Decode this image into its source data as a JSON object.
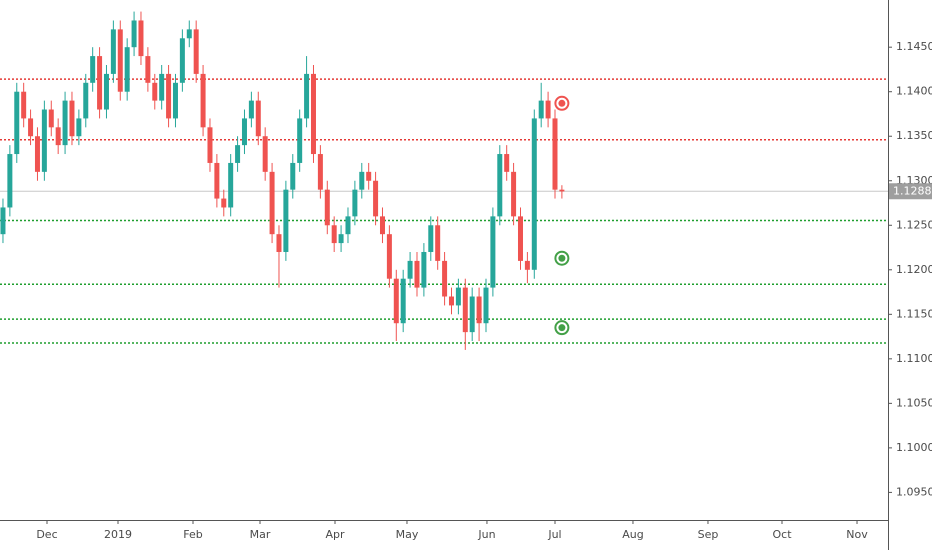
{
  "chart_data": {
    "type": "candlestick",
    "up_color": "#26a69a",
    "down_color": "#ef5350",
    "xlim": [
      -0.43,
      128.26
    ],
    "xticks": [
      {
        "value": 6.38,
        "label": "Dec"
      },
      {
        "value": 16.67,
        "label": "2019"
      },
      {
        "value": 27.54,
        "label": "Feb"
      },
      {
        "value": 37.25,
        "label": "Mar"
      },
      {
        "value": 48.12,
        "label": "Apr"
      },
      {
        "value": 58.55,
        "label": "May"
      },
      {
        "value": 70.14,
        "label": "Jun"
      },
      {
        "value": 80.0,
        "label": "Jul"
      },
      {
        "value": 91.3,
        "label": "Aug"
      },
      {
        "value": 102.17,
        "label": "Sep"
      },
      {
        "value": 112.9,
        "label": "Oct"
      },
      {
        "value": 123.77,
        "label": "Nov"
      }
    ],
    "ylim": [
      1.0919,
      1.1503
    ],
    "yticks": [
      {
        "value": 1.095,
        "label": "1.09500"
      },
      {
        "value": 1.1,
        "label": "1.10000"
      },
      {
        "value": 1.105,
        "label": "1.10500"
      },
      {
        "value": 1.11,
        "label": "1.11000"
      },
      {
        "value": 1.115,
        "label": "1.11500"
      },
      {
        "value": 1.12,
        "label": "1.12000"
      },
      {
        "value": 1.125,
        "label": "1.12500"
      },
      {
        "value": 1.13,
        "label": "1.13000"
      },
      {
        "value": 1.135,
        "label": "1.13500"
      },
      {
        "value": 1.14,
        "label": "1.14000"
      },
      {
        "value": 1.145,
        "label": "1.14500"
      }
    ],
    "open": [
      1.124,
      1.127,
      1.133,
      1.14,
      1.137,
      1.135,
      1.131,
      1.138,
      1.136,
      1.134,
      1.139,
      1.135,
      1.137,
      1.141,
      1.144,
      1.138,
      1.142,
      1.147,
      1.14,
      1.145,
      1.148,
      1.144,
      1.141,
      1.139,
      1.142,
      1.137,
      1.141,
      1.146,
      1.147,
      1.142,
      1.136,
      1.132,
      1.128,
      1.127,
      1.132,
      1.134,
      1.137,
      1.139,
      1.135,
      1.131,
      1.124,
      1.122,
      1.129,
      1.132,
      1.137,
      1.142,
      1.133,
      1.129,
      1.125,
      1.123,
      1.124,
      1.126,
      1.129,
      1.131,
      1.13,
      1.126,
      1.124,
      1.119,
      1.114,
      1.119,
      1.121,
      1.118,
      1.122,
      1.125,
      1.121,
      1.117,
      1.116,
      1.118,
      1.113,
      1.117,
      1.114,
      1.118,
      1.126,
      1.133,
      1.131,
      1.126,
      1.121,
      1.12,
      1.137,
      1.139,
      1.137,
      1.129
    ],
    "high": [
      1.128,
      1.134,
      1.141,
      1.141,
      1.138,
      1.136,
      1.139,
      1.139,
      1.137,
      1.14,
      1.14,
      1.138,
      1.142,
      1.145,
      1.145,
      1.143,
      1.148,
      1.148,
      1.146,
      1.149,
      1.149,
      1.145,
      1.142,
      1.143,
      1.143,
      1.142,
      1.147,
      1.148,
      1.148,
      1.143,
      1.137,
      1.133,
      1.129,
      1.133,
      1.135,
      1.138,
      1.14,
      1.14,
      1.136,
      1.132,
      1.125,
      1.13,
      1.133,
      1.138,
      1.144,
      1.143,
      1.134,
      1.13,
      1.126,
      1.125,
      1.127,
      1.13,
      1.132,
      1.132,
      1.131,
      1.127,
      1.125,
      1.12,
      1.12,
      1.122,
      1.122,
      1.123,
      1.126,
      1.126,
      1.122,
      1.118,
      1.119,
      1.119,
      1.118,
      1.118,
      1.119,
      1.127,
      1.134,
      1.134,
      1.132,
      1.127,
      1.122,
      1.138,
      1.141,
      1.14,
      1.138,
      1.1295
    ],
    "low": [
      1.123,
      1.126,
      1.132,
      1.136,
      1.134,
      1.13,
      1.13,
      1.135,
      1.133,
      1.133,
      1.134,
      1.134,
      1.136,
      1.14,
      1.137,
      1.137,
      1.141,
      1.139,
      1.139,
      1.144,
      1.143,
      1.14,
      1.138,
      1.138,
      1.136,
      1.136,
      1.14,
      1.145,
      1.141,
      1.135,
      1.131,
      1.127,
      1.126,
      1.126,
      1.131,
      1.133,
      1.136,
      1.134,
      1.13,
      1.123,
      1.118,
      1.121,
      1.128,
      1.131,
      1.136,
      1.132,
      1.128,
      1.124,
      1.122,
      1.122,
      1.123,
      1.125,
      1.128,
      1.129,
      1.125,
      1.123,
      1.118,
      1.112,
      1.113,
      1.118,
      1.117,
      1.117,
      1.121,
      1.12,
      1.116,
      1.115,
      1.115,
      1.111,
      1.112,
      1.112,
      1.113,
      1.117,
      1.125,
      1.13,
      1.125,
      1.12,
      1.1185,
      1.119,
      1.136,
      1.136,
      1.128,
      1.128
    ],
    "close": [
      1.127,
      1.133,
      1.14,
      1.137,
      1.135,
      1.131,
      1.138,
      1.136,
      1.134,
      1.139,
      1.135,
      1.137,
      1.141,
      1.144,
      1.138,
      1.142,
      1.147,
      1.14,
      1.145,
      1.148,
      1.144,
      1.141,
      1.139,
      1.142,
      1.137,
      1.141,
      1.146,
      1.147,
      1.142,
      1.136,
      1.132,
      1.128,
      1.127,
      1.132,
      1.134,
      1.137,
      1.139,
      1.135,
      1.131,
      1.124,
      1.122,
      1.129,
      1.132,
      1.137,
      1.142,
      1.133,
      1.129,
      1.125,
      1.123,
      1.124,
      1.126,
      1.129,
      1.131,
      1.13,
      1.126,
      1.124,
      1.119,
      1.114,
      1.119,
      1.121,
      1.118,
      1.122,
      1.125,
      1.121,
      1.117,
      1.116,
      1.118,
      1.113,
      1.117,
      1.114,
      1.118,
      1.126,
      1.133,
      1.131,
      1.126,
      1.121,
      1.12,
      1.137,
      1.139,
      1.137,
      1.129,
      1.1288
    ],
    "levels": [
      {
        "value": 1.14142,
        "color": "#e53935"
      },
      {
        "value": 1.1346,
        "color": "#e53935"
      },
      {
        "value": 1.12554,
        "color": "#1e9e2e"
      },
      {
        "value": 1.11838,
        "color": "#1e9e2e"
      },
      {
        "value": 1.11446,
        "color": "#1e9e2e"
      },
      {
        "value": 1.11178,
        "color": "#1e9e2e"
      }
    ],
    "markers": [
      {
        "value": 1.1387,
        "color": "#ef5350"
      },
      {
        "value": 1.1213,
        "color": "#43a047"
      },
      {
        "value": 1.1135,
        "color": "#43a047"
      }
    ],
    "last_price": 1.12882
  }
}
